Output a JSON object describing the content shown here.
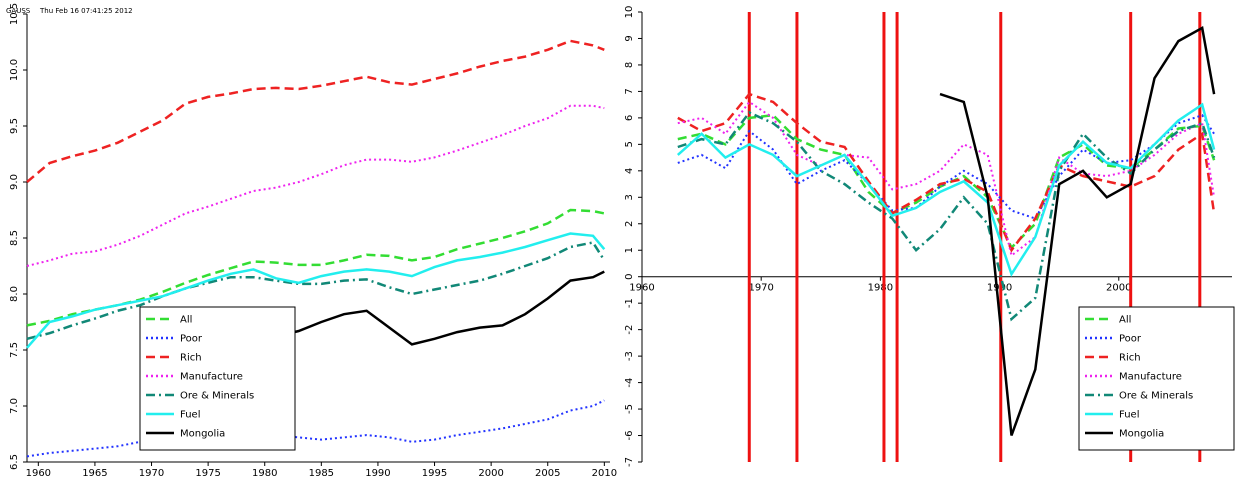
{
  "header": {
    "program": "GAUSS",
    "timestamp": "Thu Feb 16 07:41:25 2012"
  },
  "chart_data": [
    {
      "type": "line",
      "x": [
        1959,
        1961,
        1963,
        1965,
        1967,
        1969,
        1971,
        1973,
        1975,
        1977,
        1979,
        1981,
        1983,
        1985,
        1987,
        1989,
        1991,
        1993,
        1995,
        1997,
        1999,
        2001,
        2003,
        2005,
        2007,
        2009,
        2010
      ],
      "xlim": [
        1959,
        2010.5
      ],
      "xticks": [
        1960,
        1965,
        1970,
        1975,
        1980,
        1985,
        1990,
        1995,
        2000,
        2005,
        2010
      ],
      "ylim": [
        6.5,
        10.5
      ],
      "yticks": [
        6.5,
        {
          "value": 7,
          "label": "7.0"
        },
        7.5,
        {
          "value": 8,
          "label": "8.0"
        },
        8.5,
        {
          "value": 9,
          "label": "9.0"
        },
        9.5,
        {
          "value": 10,
          "label": "10.0"
        },
        10.5
      ],
      "legend": "lower left",
      "series": [
        {
          "name": "All",
          "color": "#33dd33",
          "style": "dashed",
          "values": [
            7.72,
            7.76,
            7.82,
            7.86,
            7.9,
            7.95,
            8.02,
            8.1,
            8.17,
            8.23,
            8.29,
            8.28,
            8.26,
            8.26,
            8.3,
            8.35,
            8.34,
            8.3,
            8.33,
            8.4,
            8.45,
            8.5,
            8.56,
            8.63,
            8.75,
            8.74,
            8.72
          ]
        },
        {
          "name": "Poor",
          "color": "#2233ff",
          "style": "dotted",
          "values": [
            6.55,
            6.58,
            6.6,
            6.62,
            6.64,
            6.68,
            6.72,
            6.72,
            6.72,
            6.74,
            6.76,
            6.74,
            6.72,
            6.7,
            6.72,
            6.74,
            6.72,
            6.68,
            6.7,
            6.74,
            6.77,
            6.8,
            6.84,
            6.88,
            6.96,
            7.0,
            7.05
          ]
        },
        {
          "name": "Rich",
          "color": "#ee2222",
          "style": "dashed",
          "values": [
            9.0,
            9.17,
            9.23,
            9.28,
            9.35,
            9.45,
            9.55,
            9.7,
            9.76,
            9.79,
            9.83,
            9.84,
            9.83,
            9.86,
            9.9,
            9.94,
            9.89,
            9.87,
            9.92,
            9.97,
            10.03,
            10.08,
            10.12,
            10.18,
            10.26,
            10.22,
            10.18
          ]
        },
        {
          "name": "Manufacture",
          "color": "#ee22ee",
          "style": "dotted",
          "values": [
            8.25,
            8.3,
            8.36,
            8.38,
            8.44,
            8.52,
            8.62,
            8.72,
            8.78,
            8.85,
            8.92,
            8.95,
            9.0,
            9.07,
            9.15,
            9.2,
            9.2,
            9.18,
            9.22,
            9.28,
            9.35,
            9.42,
            9.5,
            9.57,
            9.68,
            9.68,
            9.66
          ]
        },
        {
          "name": "Ore & Minerals",
          "color": "#118877",
          "style": "dashdot",
          "values": [
            7.6,
            7.65,
            7.72,
            7.78,
            7.85,
            7.9,
            7.98,
            8.05,
            8.1,
            8.15,
            8.15,
            8.12,
            8.09,
            8.09,
            8.12,
            8.13,
            8.06,
            8.0,
            8.04,
            8.08,
            8.12,
            8.18,
            8.25,
            8.32,
            8.42,
            8.46,
            8.3
          ]
        },
        {
          "name": "Fuel",
          "color": "#22eeee",
          "style": "solid",
          "values": [
            7.52,
            7.75,
            7.8,
            7.86,
            7.9,
            7.94,
            7.98,
            8.05,
            8.12,
            8.18,
            8.22,
            8.14,
            8.1,
            8.16,
            8.2,
            8.22,
            8.2,
            8.16,
            8.24,
            8.3,
            8.33,
            8.37,
            8.42,
            8.48,
            8.54,
            8.52,
            8.4
          ]
        },
        {
          "name": "Mongolia",
          "color": "#000000",
          "style": "solid",
          "values": [
            null,
            null,
            null,
            null,
            null,
            null,
            null,
            null,
            null,
            null,
            null,
            7.62,
            7.67,
            7.75,
            7.82,
            7.85,
            7.7,
            7.55,
            7.6,
            7.66,
            7.7,
            7.72,
            7.82,
            7.96,
            8.12,
            8.15,
            8.2
          ]
        }
      ]
    },
    {
      "type": "line",
      "x": [
        1963,
        1965,
        1967,
        1969,
        1971,
        1973,
        1975,
        1977,
        1979,
        1981,
        1983,
        1985,
        1987,
        1989,
        1991,
        1993,
        1995,
        1997,
        1999,
        2001,
        2003,
        2005,
        2007,
        2008
      ],
      "xlim": [
        1960,
        2009.5
      ],
      "xticks": [
        1960,
        1970,
        1980,
        1990,
        2000
      ],
      "ylim": [
        -7,
        10
      ],
      "yticks": [
        -7,
        -6,
        -5,
        -4,
        -3,
        -2,
        -1,
        0,
        1,
        2,
        3,
        4,
        5,
        6,
        7,
        8,
        9,
        10
      ],
      "vlines": [
        1969,
        1973,
        1980.3,
        1981.4,
        1990.1,
        2001,
        2006.8
      ],
      "vline_color": "#ee1111",
      "legend": "lower right",
      "series": [
        {
          "name": "All",
          "color": "#33dd33",
          "style": "dashed",
          "values": [
            5.2,
            5.4,
            5.0,
            6.0,
            6.1,
            5.2,
            4.8,
            4.6,
            3.2,
            2.4,
            2.8,
            3.4,
            3.8,
            3.0,
            1.1,
            2.0,
            4.5,
            5.0,
            4.2,
            4.1,
            4.8,
            5.6,
            5.7,
            4.4
          ]
        },
        {
          "name": "Poor",
          "color": "#2233ff",
          "style": "dotted",
          "values": [
            4.3,
            4.6,
            4.1,
            5.5,
            4.8,
            3.5,
            4.0,
            4.4,
            3.5,
            2.5,
            2.6,
            3.4,
            4.0,
            3.5,
            2.5,
            2.2,
            3.8,
            4.8,
            4.3,
            4.4,
            5.0,
            5.8,
            6.1,
            5.4
          ]
        },
        {
          "name": "Rich",
          "color": "#ee2222",
          "style": "dashed",
          "values": [
            6.0,
            5.5,
            5.8,
            6.9,
            6.6,
            5.8,
            5.1,
            4.9,
            3.6,
            2.4,
            2.9,
            3.5,
            3.7,
            3.2,
            1.0,
            2.2,
            4.2,
            3.8,
            3.6,
            3.4,
            3.8,
            4.8,
            5.4,
            2.4
          ]
        },
        {
          "name": "Manufacture",
          "color": "#ee22ee",
          "style": "dotted",
          "values": [
            5.8,
            6.0,
            5.4,
            6.6,
            6.0,
            4.6,
            4.2,
            4.6,
            4.5,
            3.3,
            3.5,
            4.0,
            5.0,
            4.6,
            0.8,
            1.5,
            4.5,
            3.9,
            3.8,
            4.0,
            4.6,
            5.4,
            5.8,
            3.0
          ]
        },
        {
          "name": "Ore & Minerals",
          "color": "#118877",
          "style": "dashdot",
          "values": [
            4.9,
            5.2,
            5.0,
            6.2,
            5.8,
            5.1,
            4.0,
            3.5,
            2.8,
            2.2,
            1.0,
            1.8,
            3.0,
            2.0,
            -1.6,
            -0.8,
            4.0,
            5.4,
            4.5,
            3.9,
            4.8,
            5.5,
            5.8,
            4.5
          ]
        },
        {
          "name": "Fuel",
          "color": "#22eeee",
          "style": "solid",
          "values": [
            4.6,
            5.4,
            4.5,
            5.0,
            4.6,
            3.8,
            4.2,
            4.6,
            3.5,
            2.3,
            2.6,
            3.2,
            3.6,
            2.8,
            0.1,
            1.5,
            4.2,
            5.1,
            4.3,
            4.1,
            5.0,
            5.9,
            6.5,
            4.8
          ]
        },
        {
          "name": "Mongolia",
          "color": "#000000",
          "style": "solid",
          "values": [
            null,
            null,
            null,
            null,
            null,
            null,
            null,
            null,
            null,
            null,
            null,
            6.9,
            6.6,
            3.0,
            -6.0,
            -3.5,
            3.5,
            4.0,
            3.0,
            3.5,
            7.5,
            8.9,
            9.4,
            6.9
          ]
        }
      ]
    }
  ]
}
